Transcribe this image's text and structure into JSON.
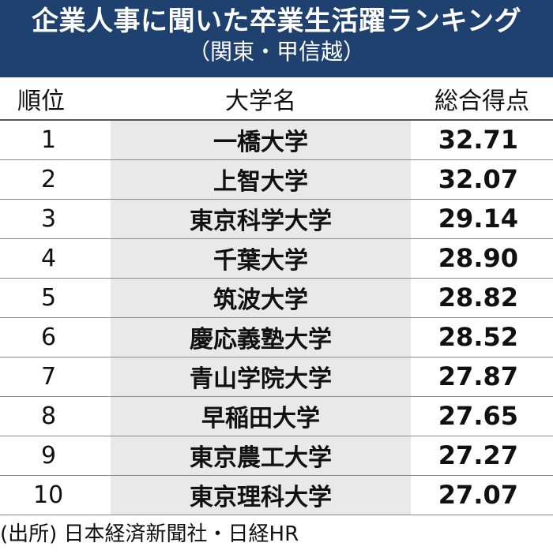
{
  "title": {
    "main": "企業人事に聞いた卒業生活躍ランキング",
    "sub": "（関東・甲信越）"
  },
  "table": {
    "headers": [
      "順位",
      "大学名",
      "総合得点"
    ],
    "rows": [
      {
        "rank": "1",
        "name": "一橋大学",
        "score": "32.71"
      },
      {
        "rank": "2",
        "name": "上智大学",
        "score": "32.07"
      },
      {
        "rank": "3",
        "name": "東京科学大学",
        "score": "29.14"
      },
      {
        "rank": "4",
        "name": "千葉大学",
        "score": "28.90"
      },
      {
        "rank": "5",
        "name": "筑波大学",
        "score": "28.82"
      },
      {
        "rank": "6",
        "name": "慶応義塾大学",
        "score": "28.52"
      },
      {
        "rank": "7",
        "name": "青山学院大学",
        "score": "27.87"
      },
      {
        "rank": "8",
        "name": "早稲田大学",
        "score": "27.65"
      },
      {
        "rank": "9",
        "name": "東京農工大学",
        "score": "27.27"
      },
      {
        "rank": "10",
        "name": "東京理科大学",
        "score": "27.07"
      }
    ]
  },
  "source": "(出所) 日本経済新聞社・日経HR",
  "colors": {
    "banner": "#1f4170",
    "name_column_bg": "#e9e9e9"
  }
}
